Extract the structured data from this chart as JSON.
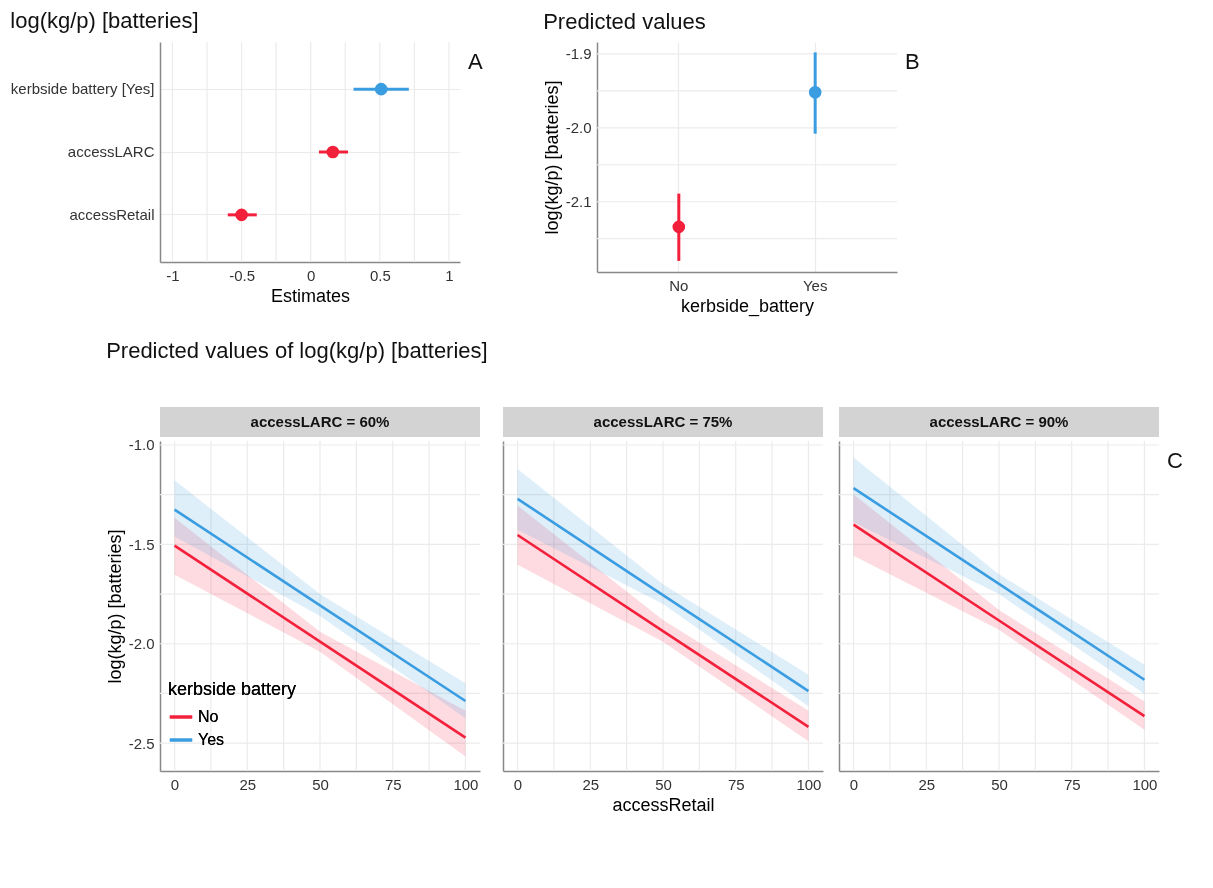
{
  "chart_data": [
    {
      "type": "scatter",
      "orientation": "horizontal",
      "title": "log(kg/p) [batteries]",
      "xlabel": "Estimates",
      "categories": [
        "kerbside battery [Yes]",
        "accessLARC",
        "accessRetail"
      ],
      "values": [
        0.51,
        0.16,
        -0.5
      ],
      "errors": [
        [
          0.31,
          0.71
        ],
        [
          0.06,
          0.27
        ],
        [
          -0.6,
          -0.39
        ]
      ],
      "colors": [
        "#3b9de1",
        "#f3203c",
        "#f3203c"
      ],
      "xlim": [
        -1.09,
        1.08
      ],
      "xticks": [
        -1,
        {
          "value": -0.75,
          "label": null
        },
        -0.5,
        {
          "value": -0.25,
          "label": null
        },
        0,
        {
          "value": 0.25,
          "label": null
        },
        0.5,
        {
          "value": 0.75,
          "label": null
        },
        1
      ],
      "grid": true,
      "annotations": [
        "A"
      ]
    },
    {
      "type": "scatter",
      "title": "Predicted values",
      "xlabel": "kerbside_battery",
      "ylabel": "log(kg/p) [batteries]",
      "categories": [
        "No",
        "Yes"
      ],
      "values": [
        -2.134,
        -1.952
      ],
      "errors": [
        [
          -2.18,
          -2.089
        ],
        [
          -2.008,
          -1.898
        ]
      ],
      "colors": [
        "#f3203c",
        "#3b9de1"
      ],
      "ylim": [
        -2.195,
        -1.884
      ],
      "yticks": [
        -1.9,
        {
          "value": -1.95,
          "label": null
        },
        {
          "value": -2.0,
          "label": "-2.0"
        },
        {
          "value": -2.05,
          "label": null
        },
        -2.1,
        {
          "value": -2.15,
          "label": null
        }
      ],
      "grid": true,
      "annotations": [
        "B"
      ]
    },
    {
      "type": "line",
      "title": "Predicted values of log(kg/p) [batteries]",
      "subtitle": "accessLARC = 60%",
      "ylabel": "log(kg/p) [batteries]",
      "legend_title": "kerbside battery",
      "legend": "bottom left",
      "x": [
        0,
        50,
        100
      ],
      "series": [
        {
          "name": "No",
          "color": "#f3203c",
          "values": [
            -1.506,
            -1.989,
            -2.472
          ],
          "lower": [
            -1.653,
            -2.04,
            -2.567
          ],
          "upper": [
            -1.366,
            -1.94,
            -2.337
          ]
        },
        {
          "name": "Yes",
          "color": "#3b9de1",
          "values": [
            -1.325,
            -1.807,
            -2.288
          ],
          "lower": [
            -1.46,
            -1.86,
            -2.375
          ],
          "upper": [
            -1.178,
            -1.75,
            -2.199
          ]
        }
      ],
      "xlim": [
        -5,
        105
      ],
      "ylim": [
        -2.64,
        -0.98
      ],
      "xticks": [
        0,
        {
          "value": 12.5,
          "label": null
        },
        25,
        {
          "value": 37.5,
          "label": null
        },
        50,
        {
          "value": 62.5,
          "label": null
        },
        75,
        {
          "value": 87.5,
          "label": null
        },
        100
      ],
      "yticks": [
        {
          "value": -1.0,
          "label": "-1.0"
        },
        {
          "value": -1.25,
          "label": null
        },
        -1.5,
        {
          "value": -1.75,
          "label": null
        },
        {
          "value": -2.0,
          "label": "-2.0"
        },
        {
          "value": -2.25,
          "label": null
        },
        -2.5
      ],
      "grid": true
    },
    {
      "type": "line",
      "subtitle": "accessLARC = 75%",
      "xlabel": "accessRetail",
      "tick_labels": "x",
      "x": [
        0,
        50,
        100
      ],
      "series": [
        {
          "color": "#f3203c",
          "values": [
            -1.453,
            -1.936,
            -2.418
          ],
          "lower": [
            -1.603,
            -1.99,
            -2.49
          ],
          "upper": [
            -1.305,
            -1.88,
            -2.337
          ]
        },
        {
          "color": "#3b9de1",
          "values": [
            -1.271,
            -1.755,
            -2.238
          ],
          "lower": [
            -1.427,
            -1.8,
            -2.314
          ],
          "upper": [
            -1.121,
            -1.7,
            -2.156
          ]
        }
      ],
      "xlim": [
        -5,
        105
      ],
      "ylim": [
        -2.64,
        -0.98
      ],
      "xticks": [
        0,
        {
          "value": 12.5,
          "label": null
        },
        25,
        {
          "value": 37.5,
          "label": null
        },
        50,
        {
          "value": 62.5,
          "label": null
        },
        75,
        {
          "value": 87.5,
          "label": null
        },
        100
      ],
      "yticks": [
        {
          "value": -1.0,
          "label": null
        },
        {
          "value": -1.25,
          "label": null
        },
        {
          "value": -1.5,
          "label": null
        },
        {
          "value": -1.75,
          "label": null
        },
        {
          "value": -2.0,
          "label": null
        },
        {
          "value": -2.25,
          "label": null
        },
        {
          "value": -2.5,
          "label": null
        }
      ],
      "grid": true
    },
    {
      "type": "line",
      "subtitle": "accessLARC = 90%",
      "tick_labels": "x",
      "x": [
        0,
        50,
        100
      ],
      "series": [
        {
          "color": "#f3203c",
          "values": [
            -1.401,
            -1.883,
            -2.364
          ],
          "lower": [
            -1.557,
            -1.93,
            -2.432
          ],
          "upper": [
            -1.248,
            -1.83,
            -2.291
          ]
        },
        {
          "color": "#3b9de1",
          "values": [
            -1.217,
            -1.699,
            -2.181
          ],
          "lower": [
            -1.389,
            -1.75,
            -2.253
          ],
          "upper": [
            -1.063,
            -1.65,
            -2.105
          ]
        }
      ],
      "xlim": [
        -5,
        105
      ],
      "ylim": [
        -2.64,
        -0.98
      ],
      "xticks": [
        0,
        {
          "value": 12.5,
          "label": null
        },
        25,
        {
          "value": 37.5,
          "label": null
        },
        50,
        {
          "value": 62.5,
          "label": null
        },
        75,
        {
          "value": 87.5,
          "label": null
        },
        100
      ],
      "yticks": [
        {
          "value": -1.0,
          "label": null
        },
        {
          "value": -1.25,
          "label": null
        },
        {
          "value": -1.5,
          "label": null
        },
        {
          "value": -1.75,
          "label": null
        },
        {
          "value": -2.0,
          "label": null
        },
        {
          "value": -2.25,
          "label": null
        },
        {
          "value": -2.5,
          "label": null
        }
      ],
      "grid": true,
      "annotations": [
        "C"
      ]
    }
  ]
}
